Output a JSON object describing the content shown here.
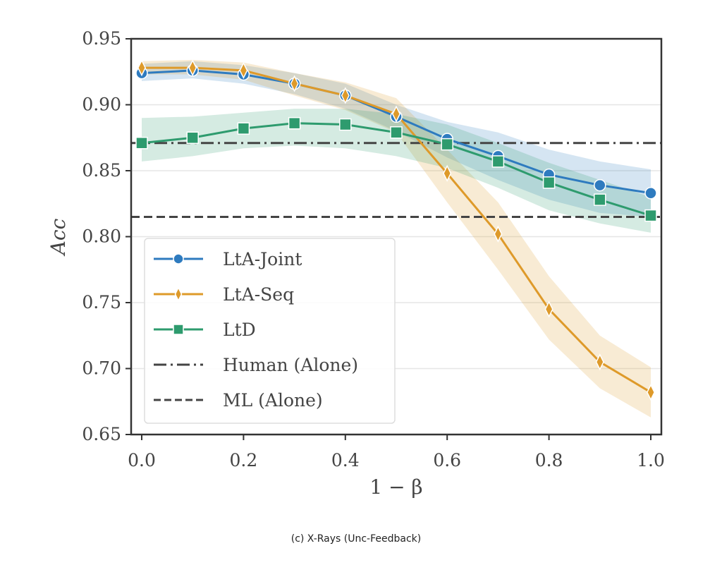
{
  "caption": "(c) X-Rays (Unc-Feedback)",
  "chart_data": {
    "type": "line",
    "title": "",
    "xlabel": "1 − β",
    "ylabel": "Acc",
    "xlim": [
      -0.02,
      1.02
    ],
    "ylim": [
      0.65,
      0.95
    ],
    "grid": "horizontal",
    "legend_position": "lower-left",
    "x": [
      0.0,
      0.1,
      0.2,
      0.3,
      0.4,
      0.5,
      0.6,
      0.7,
      0.8,
      0.9,
      1.0
    ],
    "xticks": [
      "0.0",
      "0.2",
      "0.4",
      "0.6",
      "0.8",
      "1.0"
    ],
    "xtick_values": [
      0.0,
      0.2,
      0.4,
      0.6,
      0.8,
      1.0
    ],
    "yticks": [
      "0.65",
      "0.70",
      "0.75",
      "0.80",
      "0.85",
      "0.90",
      "0.95"
    ],
    "ytick_values": [
      0.65,
      0.7,
      0.75,
      0.8,
      0.85,
      0.9,
      0.95
    ],
    "series": [
      {
        "name": "LtA-Joint",
        "color": "#2e7bbf",
        "marker": "circle",
        "values": [
          0.924,
          0.926,
          0.923,
          0.916,
          0.907,
          0.891,
          0.874,
          0.861,
          0.847,
          0.839,
          0.833
        ],
        "lower": [
          0.918,
          0.92,
          0.916,
          0.908,
          0.897,
          0.88,
          0.86,
          0.843,
          0.828,
          0.818,
          0.815
        ],
        "upper": [
          0.931,
          0.933,
          0.93,
          0.924,
          0.916,
          0.9,
          0.887,
          0.879,
          0.866,
          0.857,
          0.851
        ]
      },
      {
        "name": "LtA-Seq",
        "color": "#de9a2a",
        "marker": "diamond",
        "values": [
          0.928,
          0.928,
          0.926,
          0.916,
          0.907,
          0.893,
          0.848,
          0.802,
          0.745,
          0.705,
          0.682
        ],
        "lower": [
          0.923,
          0.923,
          0.919,
          0.907,
          0.896,
          0.879,
          0.826,
          0.775,
          0.722,
          0.685,
          0.663
        ],
        "upper": [
          0.933,
          0.934,
          0.932,
          0.924,
          0.917,
          0.905,
          0.866,
          0.826,
          0.77,
          0.725,
          0.701
        ]
      },
      {
        "name": "LtD",
        "color": "#2e9b6e",
        "marker": "square",
        "values": [
          0.871,
          0.875,
          0.882,
          0.886,
          0.885,
          0.879,
          0.87,
          0.857,
          0.841,
          0.828,
          0.816
        ],
        "lower": [
          0.857,
          0.861,
          0.867,
          0.869,
          0.867,
          0.861,
          0.852,
          0.837,
          0.82,
          0.81,
          0.803
        ],
        "upper": [
          0.89,
          0.891,
          0.894,
          0.897,
          0.897,
          0.893,
          0.885,
          0.871,
          0.856,
          0.843,
          0.83
        ]
      }
    ],
    "reference_lines": [
      {
        "name": "Human (Alone)",
        "value": 0.871,
        "style": "dashdot",
        "color": "#444444"
      },
      {
        "name": "ML (Alone)",
        "value": 0.815,
        "style": "dashed",
        "color": "#444444"
      }
    ],
    "legend": [
      {
        "label": "LtA-Joint",
        "style": "line-circle",
        "color": "#2e7bbf"
      },
      {
        "label": "LtA-Seq",
        "style": "line-diamond",
        "color": "#de9a2a"
      },
      {
        "label": "LtD",
        "style": "line-square",
        "color": "#2e9b6e"
      },
      {
        "label": "Human (Alone)",
        "style": "dashdot",
        "color": "#444444"
      },
      {
        "label": "ML (Alone)",
        "style": "dashed",
        "color": "#444444"
      }
    ]
  }
}
